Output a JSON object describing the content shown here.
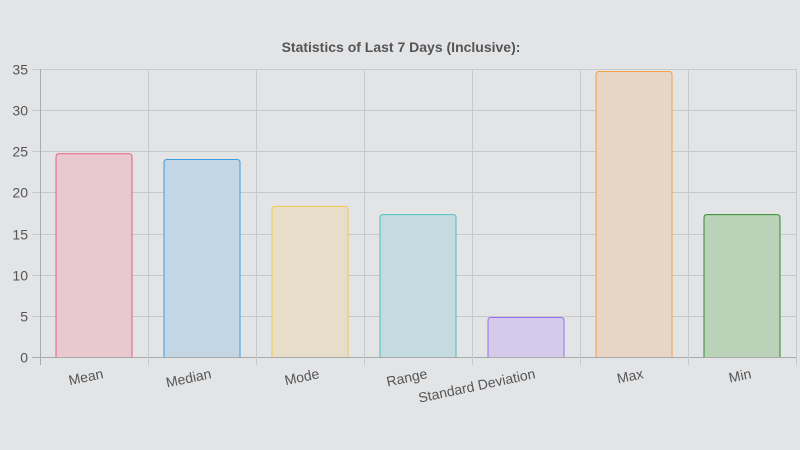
{
  "chart_data": {
    "type": "bar",
    "title": "Statistics of Last 7 Days (Inclusive):",
    "categories": [
      "Mean",
      "Median",
      "Mode",
      "Range",
      "Standard Deviation",
      "Max",
      "Min"
    ],
    "values": [
      24.7,
      24.0,
      18.3,
      17.3,
      4.8,
      34.7,
      17.3
    ],
    "ylim": [
      0,
      35
    ],
    "yticks": [
      0,
      5,
      10,
      15,
      20,
      25,
      30,
      35
    ],
    "grid": true,
    "legend": "none",
    "colors": {
      "border": [
        "#e8607f",
        "#3a9de0",
        "#f2c84b",
        "#4bbfbf",
        "#9a6ef0",
        "#f5a04a",
        "#2e8b2e"
      ],
      "fill": [
        "#e8c9d0",
        "#c2d6e6",
        "#e6dec8",
        "#c4dcdf",
        "#d4cbea",
        "#e7d6c5",
        "#b9d2b8"
      ],
      "grid": "#c8c9cb",
      "axis": "#a9aaac",
      "text": "#555555"
    }
  }
}
